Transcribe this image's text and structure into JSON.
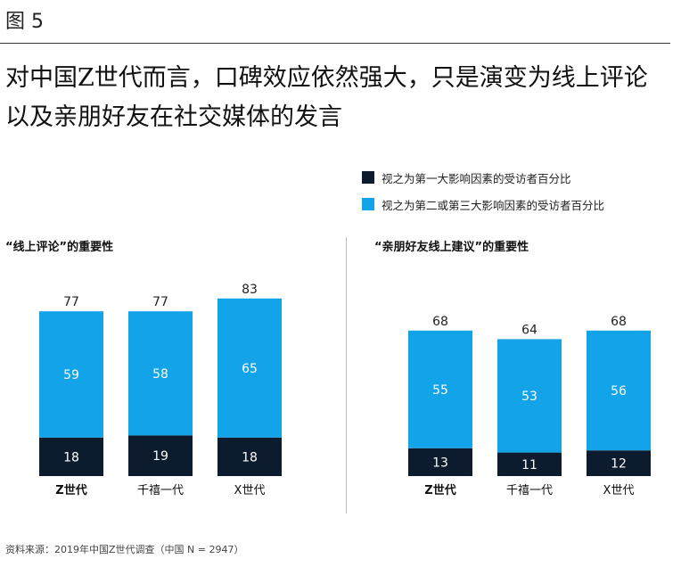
{
  "figure_label": "图 5",
  "headline": "对中国Z世代而言，口碑效应依然强大，只是演变为线上评论以及亲朋好友在社交媒体的发言",
  "legend": [
    {
      "label": "视之为第一大影响因素的受访者百分比",
      "color": "#0d1b2e"
    },
    {
      "label": "视之为第二或第三大影响因素的受访者百分比",
      "color": "#12a3e8"
    }
  ],
  "footnote": "资料来源：2019年中国Z世代调查（中国 N = 2947）",
  "chart_data": [
    {
      "type": "bar",
      "stacked": true,
      "title": "“线上评论”的重要性",
      "categories": [
        "Z世代",
        "千禧一代",
        "X世代"
      ],
      "bold_categories": [
        "Z世代"
      ],
      "series": [
        {
          "name": "视之为第一大影响因素的受访者百分比",
          "values": [
            18,
            19,
            18
          ]
        },
        {
          "name": "视之为第二或第三大影响因素的受访者百分比",
          "values": [
            59,
            58,
            65
          ]
        }
      ],
      "totals": [
        77,
        77,
        83
      ],
      "ylim": [
        0,
        90
      ]
    },
    {
      "type": "bar",
      "stacked": true,
      "title": "“亲朋好友线上建议”的重要性",
      "categories": [
        "Z世代",
        "千禧一代",
        "X世代"
      ],
      "bold_categories": [
        "Z世代"
      ],
      "series": [
        {
          "name": "视之为第一大影响因素的受访者百分比",
          "values": [
            13,
            11,
            12
          ]
        },
        {
          "name": "视之为第二或第三大影响因素的受访者百分比",
          "values": [
            55,
            53,
            56
          ]
        }
      ],
      "totals": [
        68,
        64,
        68
      ],
      "ylim": [
        0,
        90
      ]
    }
  ]
}
